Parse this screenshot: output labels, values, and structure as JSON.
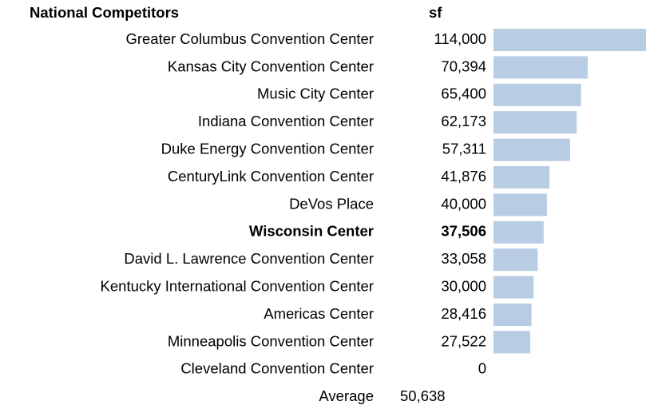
{
  "chart_data": {
    "type": "bar",
    "orientation": "horizontal",
    "category_header": "National Competitors",
    "value_header": "sf",
    "categories": [
      "Greater Columbus Convention Center",
      "Kansas City Convention Center",
      "Music City Center",
      "Indiana Convention Center",
      "Duke Energy Convention Center",
      "CenturyLink Convention Center",
      "DeVos Place",
      "Wisconsin Center",
      "David L. Lawrence Convention Center",
      "Kentucky International Convention Center",
      "Americas Center",
      "Minneapolis Convention Center",
      "Cleveland Convention Center"
    ],
    "values": [
      114000,
      70394,
      65400,
      62173,
      57311,
      41876,
      40000,
      37506,
      33058,
      30000,
      28416,
      27522,
      0
    ],
    "value_labels": [
      "114,000",
      "70,394",
      "65,400",
      "62,173",
      "57,311",
      "41,876",
      "40,000",
      "37,506",
      "33,058",
      "30,000",
      "28,416",
      "27,522",
      "0"
    ],
    "highlight": "Wisconsin Center",
    "average_name": "Average",
    "average": 50638,
    "average_label": "50,638",
    "color": "#b8cce4",
    "xlim": [
      0,
      114000
    ]
  }
}
